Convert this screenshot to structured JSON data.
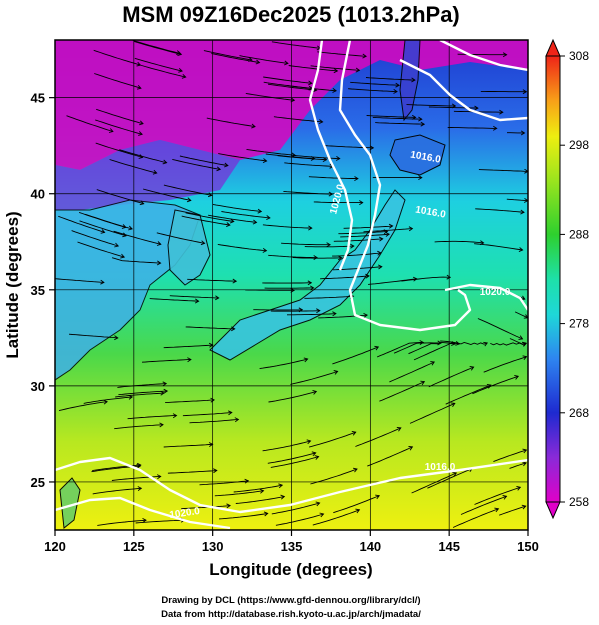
{
  "chart_data": {
    "type": "heatmap",
    "title": "MSM 09Z16Dec2025 (1013.2hPa)",
    "xlabel": "Longitude (degrees)",
    "ylabel": "Latitude  (degrees)",
    "xlim": [
      120,
      150
    ],
    "ylim": [
      22.5,
      48
    ],
    "x_ticks": [
      120,
      125,
      130,
      135,
      140,
      145,
      150
    ],
    "y_ticks": [
      25,
      30,
      35,
      40,
      45
    ],
    "grid": true,
    "colorbar": {
      "range": [
        258,
        308
      ],
      "ticks": [
        258,
        268,
        278,
        288,
        298,
        308
      ],
      "placement": "right"
    },
    "contour_labels": [
      "1020.0",
      "1016.0",
      "1020.0",
      "1016.0",
      "1020.0",
      "1016.0"
    ],
    "credits": [
      "Drawing by DCL (https://www.gfd-dennou.org/library/dcl/)",
      "Data from http://database.rish.kyoto-u.ac.jp/arch/jmadata/"
    ]
  }
}
